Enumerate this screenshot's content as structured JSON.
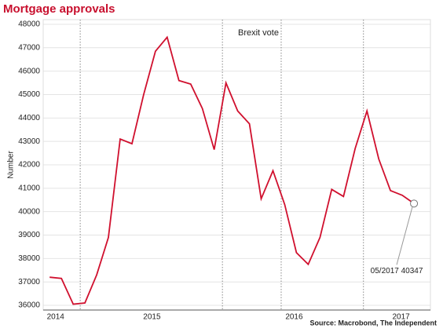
{
  "chart_data": {
    "type": "line",
    "title": "Mortgage approvals",
    "y_label": "Number",
    "source": "Source: Macrobond, The Independent",
    "categories": [
      null,
      null,
      null,
      null,
      null,
      null,
      null,
      null,
      null,
      null,
      null,
      null,
      null,
      null,
      null,
      null,
      null,
      null,
      null,
      null,
      null,
      null,
      null,
      null,
      null,
      null,
      null,
      null,
      null,
      null,
      null,
      null
    ],
    "series": [
      {
        "name": "Mortgage approvals",
        "color": "#d0102e",
        "values": [
          37200,
          37150,
          36050,
          36100,
          37300,
          38900,
          43100,
          42900,
          45000,
          46850,
          47450,
          45600,
          45450,
          44400,
          42650,
          45500,
          44300,
          43750,
          40550,
          41750,
          40300,
          38250,
          37750,
          38900,
          40950,
          40650,
          42700,
          44300,
          42250,
          40900,
          40700,
          40347
        ]
      }
    ],
    "xlim": [
      -0.55,
      32.4
    ],
    "xticks": [
      {
        "value": 0.5,
        "label": "2014"
      },
      {
        "value": 8.7,
        "label": "2015"
      },
      {
        "value": 20.8,
        "label": "2016"
      },
      {
        "value": 29.9,
        "label": "2017"
      }
    ],
    "vlines": [
      2.6,
      14.7,
      19.7,
      26.7
    ],
    "annotations": [
      {
        "text": "Brexit vote"
      },
      {
        "text": "05/2017 40347"
      }
    ],
    "ylim": [
      35800,
      48200
    ],
    "yticks": [
      36000,
      37000,
      38000,
      39000,
      40000,
      41000,
      42000,
      43000,
      44000,
      45000,
      46000,
      47000,
      48000
    ],
    "grid": true
  }
}
